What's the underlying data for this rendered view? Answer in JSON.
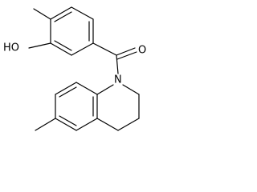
{
  "atoms": {
    "hydroxyl": "HO",
    "carbonyl_oxygen": "O",
    "ring_nitrogen": "N"
  }
}
